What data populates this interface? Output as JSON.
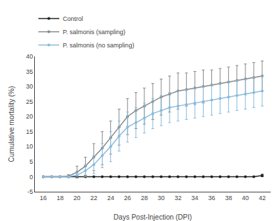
{
  "chart_data": {
    "type": "line",
    "xlabel": "Days Post-Injection (DPI)",
    "ylabel": "Cumulative mortality (%)",
    "x": [
      16,
      17,
      18,
      19,
      20,
      21,
      22,
      23,
      24,
      25,
      26,
      27,
      28,
      29,
      30,
      31,
      32,
      33,
      34,
      35,
      36,
      37,
      38,
      39,
      40,
      41,
      42
    ],
    "series": [
      {
        "name": "Control",
        "color": "#222222",
        "values": [
          0,
          0,
          0,
          0,
          0,
          0,
          0,
          0,
          0,
          0,
          0,
          0,
          0,
          0,
          0,
          0,
          0,
          0,
          0,
          0,
          0,
          0,
          0,
          0,
          0,
          0,
          0.4
        ],
        "error": [
          0,
          0,
          0,
          0,
          0,
          0,
          0,
          0,
          0,
          0,
          0,
          0,
          0,
          0,
          0,
          0,
          0,
          0,
          0,
          0,
          0,
          0,
          0,
          0,
          0,
          0,
          0.4
        ]
      },
      {
        "name": "P. salmonis (sampling)",
        "color": "#888888",
        "values": [
          0,
          0,
          0,
          0.2,
          1.5,
          3.5,
          6.5,
          9.5,
          13,
          16.5,
          20,
          22,
          23.5,
          25,
          26.5,
          27.5,
          28.5,
          29,
          29.5,
          30,
          30.5,
          31,
          31.5,
          32,
          32.5,
          33,
          33.5
        ],
        "error": [
          0,
          0,
          0,
          0.5,
          2,
          3,
          4.5,
          5.5,
          5.5,
          6,
          6,
          6,
          6,
          6,
          6,
          6,
          6,
          5.5,
          5.5,
          5.5,
          5,
          5,
          5,
          5,
          5,
          5,
          5
        ]
      },
      {
        "name": "P. salmonis (no sampling)",
        "color": "#88bbdd",
        "values": [
          0,
          0,
          0,
          0,
          0.5,
          2,
          4,
          7,
          10,
          13.5,
          16.5,
          18,
          19.5,
          21,
          22,
          23,
          23.5,
          24,
          24.5,
          25,
          25.5,
          26,
          26.5,
          27,
          27.5,
          28,
          28.5
        ],
        "error": [
          0,
          0,
          0,
          0,
          1,
          2,
          3,
          4,
          5,
          5,
          5,
          5,
          5,
          5,
          5,
          5,
          5,
          5,
          5,
          5,
          5,
          5,
          5,
          5,
          5,
          5,
          5
        ]
      }
    ],
    "xlim": [
      15,
      43
    ],
    "xticks": [
      16,
      18,
      20,
      22,
      24,
      26,
      28,
      30,
      32,
      34,
      36,
      38,
      40,
      42
    ],
    "ylim": [
      -5,
      40
    ],
    "yticks": [
      -5,
      0,
      5,
      10,
      15,
      20,
      25,
      30,
      35,
      40
    ],
    "marker": "circle",
    "grid": false,
    "legend": "upper left"
  }
}
